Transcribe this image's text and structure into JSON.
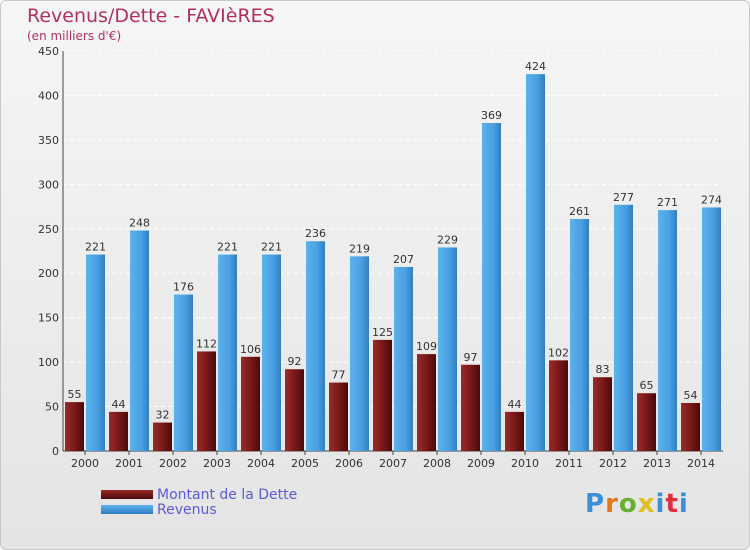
{
  "chart_data": {
    "type": "bar",
    "title": "Revenus/Dette - FAVIèRES",
    "subtitle": "(en milliers d'€)",
    "categories": [
      "2000",
      "2001",
      "2002",
      "2003",
      "2004",
      "2005",
      "2006",
      "2007",
      "2008",
      "2009",
      "2010",
      "2011",
      "2012",
      "2013",
      "2014"
    ],
    "series": [
      {
        "name": "Montant de la Dette",
        "color": "#7a1a1a",
        "values": [
          55,
          44,
          32,
          112,
          106,
          92,
          77,
          125,
          109,
          97,
          44,
          102,
          83,
          65,
          54
        ]
      },
      {
        "name": "Revenus",
        "color": "#4ea3e3",
        "values": [
          221,
          248,
          176,
          221,
          221,
          236,
          219,
          207,
          229,
          369,
          424,
          261,
          277,
          271,
          274
        ]
      }
    ],
    "ylim": [
      0,
      450
    ],
    "yticks": [
      0,
      50,
      100,
      150,
      200,
      250,
      300,
      350,
      400,
      450
    ],
    "grid": true,
    "legend_position": "bottom-left"
  },
  "logo": {
    "text": "Proxiti",
    "colors": [
      "#3a8fd8",
      "#e07820",
      "#6ab030",
      "#e0c020",
      "#3a8fd8",
      "#e03040",
      "#3a8fd8"
    ]
  }
}
